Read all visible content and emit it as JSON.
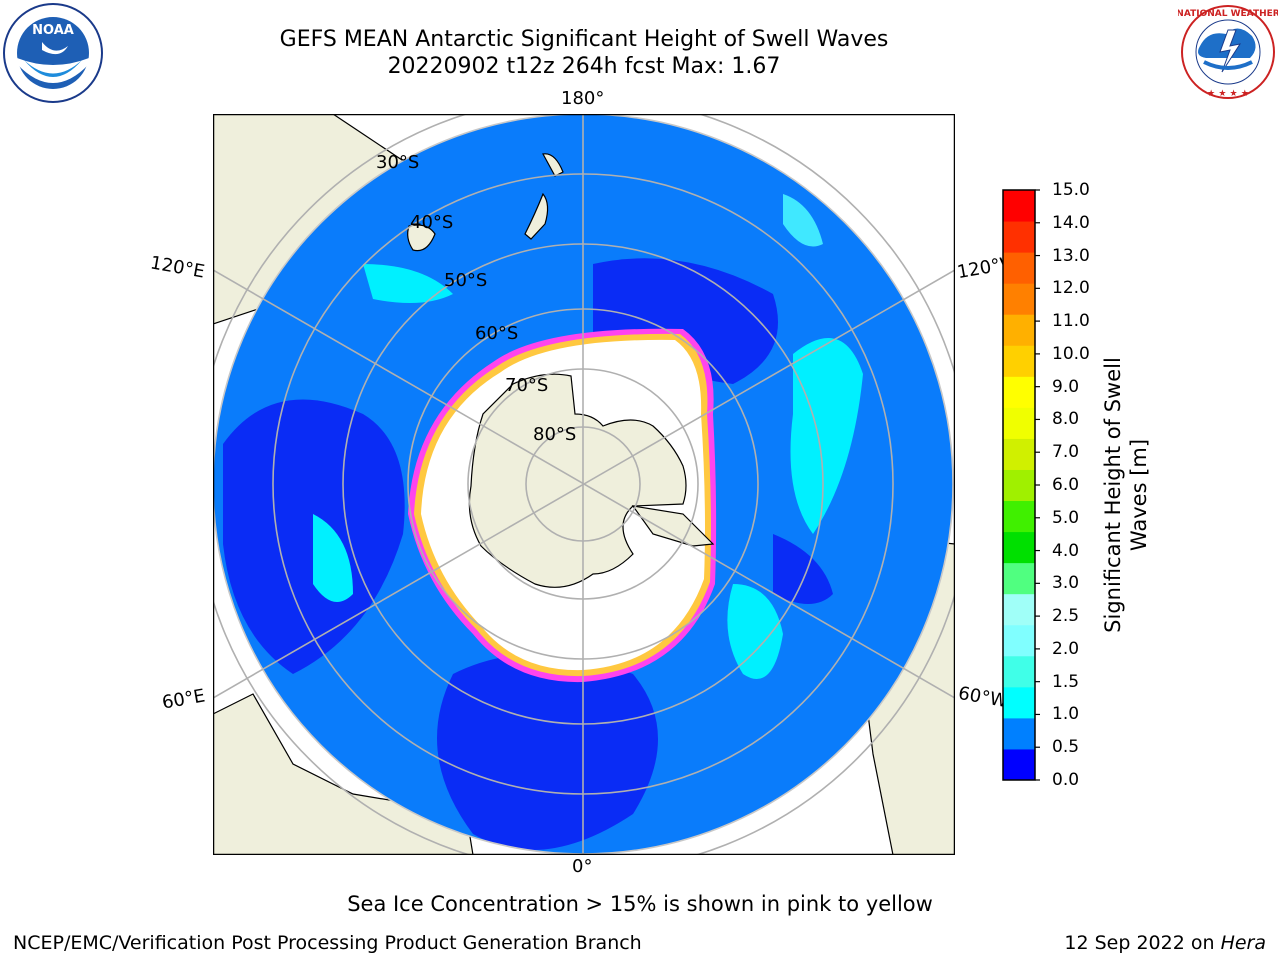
{
  "header": {
    "title_line1": "GEFS MEAN Antarctic Significant Height of Swell Waves",
    "title_line2": "20220902 t12z 264h fcst   Max: 1.67"
  },
  "logos": {
    "noaa_text": "NOAA",
    "noaa_ring_text": "NATIONAL OCEANIC AND ATMOSPHERIC ADMINISTRATION · U.S. DEPARTMENT OF COMMERCE",
    "nws_ring_text": "NATIONAL WEATHER SERVICE"
  },
  "map": {
    "projection": "south-polar-stereographic",
    "longitude_labels": {
      "top": "180°",
      "bottom": "0°",
      "upper_left": "120°E",
      "lower_left": "60°E",
      "upper_right": "120°W",
      "lower_right": "60°W"
    },
    "latitude_labels": [
      "30°S",
      "40°S",
      "50°S",
      "60°S",
      "70°S",
      "80°S"
    ],
    "colors": {
      "land": "#efefdc",
      "ocean_low": "#0a2cf5",
      "ocean_mid": "#0a7cfb",
      "swell_high": "#00f0ff",
      "ice_white": "#ffffff",
      "ice_pink": "#ff44ee",
      "ice_yellow": "#ffc840",
      "grid": "#b0b0b0"
    }
  },
  "colorbar": {
    "label": "Significant Height of Swell Waves [m]",
    "label_line1": "Significant Height of Swell",
    "label_line2": "Waves [m]",
    "ticks": [
      "0.0",
      "0.5",
      "1.0",
      "1.5",
      "2.0",
      "2.5",
      "3.0",
      "4.0",
      "5.0",
      "6.0",
      "7.0",
      "8.0",
      "9.0",
      "10.0",
      "11.0",
      "12.0",
      "13.0",
      "14.0",
      "15.0"
    ],
    "colors": [
      "#0000ff",
      "#0080ff",
      "#00ffff",
      "#40ffe8",
      "#80ffff",
      "#a0fff8",
      "#50ff80",
      "#00e000",
      "#40f000",
      "#a0f000",
      "#d0f000",
      "#f0ff00",
      "#ffff00",
      "#ffd000",
      "#ffb000",
      "#ff8000",
      "#ff6000",
      "#ff3000",
      "#ff0000"
    ]
  },
  "notes": {
    "sea_ice": "Sea Ice Concentration > 15% is shown in pink to yellow"
  },
  "footer": {
    "left": "NCEP/EMC/Verification Post Processing Product Generation Branch",
    "right_prefix": "12 Sep 2022 on ",
    "right_machine": "Hera"
  }
}
